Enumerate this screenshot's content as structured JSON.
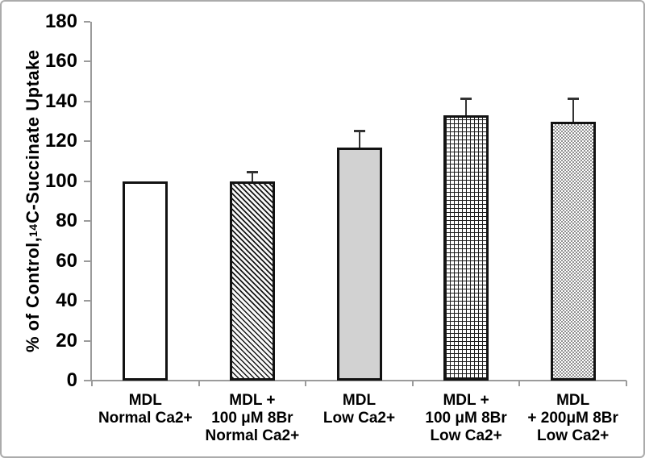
{
  "figure": {
    "background": "#ffffff",
    "frame_color": "#ababab"
  },
  "chart_data": {
    "type": "bar",
    "title": "",
    "xlabel": "",
    "ylabel": "% of Control, 14C-Succinate Uptake",
    "ylabel_parts": {
      "prefix": "% of Control, ",
      "superscript": "14",
      "suffix": "C-Succinate Uptake"
    },
    "ylim": [
      0,
      180
    ],
    "yticks": [
      0,
      20,
      40,
      60,
      80,
      100,
      120,
      140,
      160,
      180
    ],
    "grid": false,
    "legend_position": "none",
    "categories": [
      {
        "lines": [
          "MDL",
          "Normal Ca2+"
        ]
      },
      {
        "lines": [
          "MDL +",
          "100 μM 8Br",
          "Normal Ca2+"
        ]
      },
      {
        "lines": [
          "MDL",
          "Low Ca2+"
        ]
      },
      {
        "lines": [
          "MDL +",
          "100 μM 8Br",
          "Low Ca2+"
        ]
      },
      {
        "lines": [
          "MDL",
          "+ 200μM 8Br",
          "Low Ca2+"
        ]
      }
    ],
    "values": [
      100,
      100,
      117,
      133,
      130
    ],
    "errors_plus": [
      0,
      5,
      9,
      9,
      12
    ],
    "bar_patterns": [
      "open",
      "diagonal-hatch",
      "solid-gray",
      "grid",
      "checker"
    ],
    "colors": {
      "bar_border": "#121212",
      "axis": "#9b9b9b",
      "tick_label": "#000000",
      "solid_gray_fill": "#d2d2d2",
      "error_bar": "#333333"
    }
  }
}
